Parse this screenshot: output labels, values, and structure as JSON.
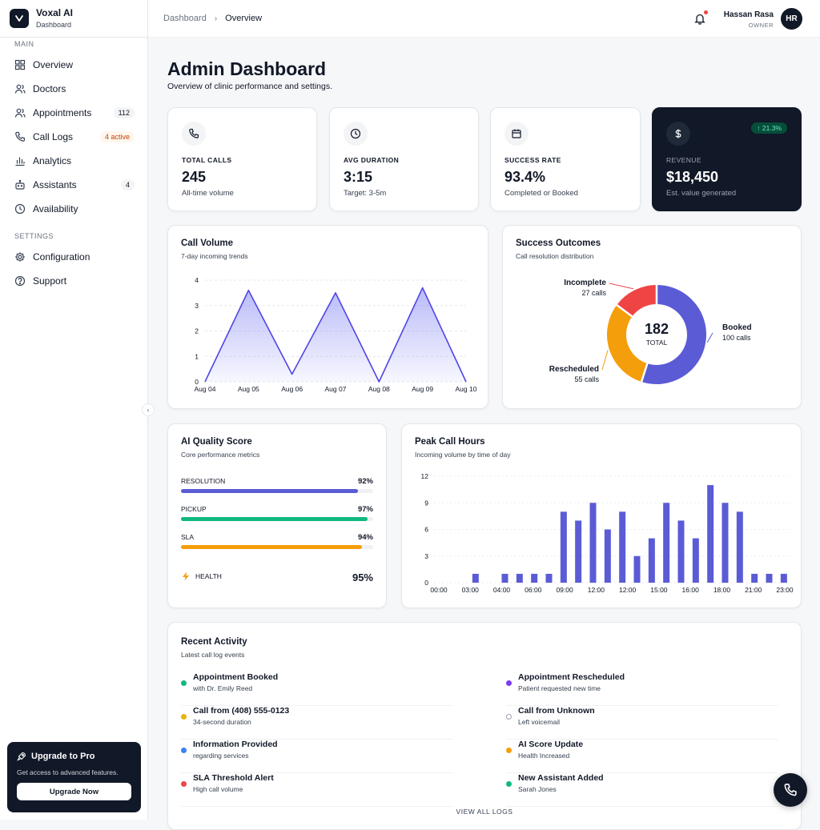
{
  "brand": {
    "name": "Voxal AI",
    "subtitle": "Dashboard"
  },
  "sidebar": {
    "main_label": "MAIN",
    "items": [
      {
        "label": "Overview",
        "icon": "grid-icon"
      },
      {
        "label": "Doctors",
        "icon": "users-icon"
      },
      {
        "label": "Appointments",
        "icon": "users-icon",
        "badge": "112"
      },
      {
        "label": "Call Logs",
        "icon": "phone-icon",
        "badge": "4 active"
      },
      {
        "label": "Analytics",
        "icon": "bar-chart-icon"
      },
      {
        "label": "Assistants",
        "icon": "robot-icon",
        "badge": "4"
      },
      {
        "label": "Availability",
        "icon": "clock-icon"
      }
    ],
    "settings_label": "SETTINGS",
    "settings_items": [
      {
        "label": "Configuration",
        "icon": "gear-icon"
      },
      {
        "label": "Support",
        "icon": "help-icon"
      }
    ],
    "upgrade": {
      "title": "Upgrade to Pro",
      "description": "Get access to advanced features.",
      "button": "Upgrade Now"
    }
  },
  "header": {
    "breadcrumb": [
      "Dashboard",
      "Overview"
    ],
    "user": {
      "name": "Hassan Rasa",
      "role": "OWNER",
      "initials": "HR"
    }
  },
  "page": {
    "title": "Admin Dashboard",
    "subtitle": "Overview of clinic performance and settings."
  },
  "stats": [
    {
      "label": "TOTAL CALLS",
      "value": "245",
      "sub": "All-time volume",
      "icon": "phone-icon"
    },
    {
      "label": "AVG DURATION",
      "value": "3:15",
      "sub": "Target: 3-5m",
      "icon": "clock-icon"
    },
    {
      "label": "SUCCESS RATE",
      "value": "93.4%",
      "sub": "Completed or Booked",
      "icon": "calendar-icon"
    },
    {
      "label": "REVENUE",
      "value": "$18,450",
      "sub": "Est. value generated",
      "icon": "dollar-icon",
      "trend": "↑ 21.3%"
    }
  ],
  "call_volume": {
    "title": "Call Volume",
    "subtitle": "7-day incoming trends"
  },
  "success_outcomes": {
    "title": "Success Outcomes",
    "subtitle": "Call resolution distribution",
    "center_value": "182",
    "center_label": "TOTAL",
    "labels": [
      {
        "name": "Booked",
        "sub": "100 calls"
      },
      {
        "name": "Rescheduled",
        "sub": "55 calls"
      },
      {
        "name": "Incomplete",
        "sub": "27 calls"
      }
    ]
  },
  "quality": {
    "title": "AI Quality Score",
    "subtitle": "Core performance metrics",
    "metrics": [
      {
        "label": "RESOLUTION",
        "value": "92%",
        "fraction": 0.92,
        "color": "#5b5bd6"
      },
      {
        "label": "PICKUP",
        "value": "97%",
        "fraction": 0.97,
        "color": "#10b981"
      },
      {
        "label": "SLA",
        "value": "94%",
        "fraction": 0.94,
        "color": "#f59e0b"
      }
    ],
    "health_label": "HEALTH",
    "health_value": "95%"
  },
  "peak_hours": {
    "title": "Peak Call Hours",
    "subtitle": "Incoming volume by time of day"
  },
  "activity": {
    "title": "Recent Activity",
    "subtitle": "Latest call log events",
    "items": [
      {
        "title": "Appointment Booked",
        "sub": "with Dr. Emily Reed",
        "color": "#10b981"
      },
      {
        "title": "Appointment Rescheduled",
        "sub": "Patient requested new time",
        "color": "#7c3aed"
      },
      {
        "title": "Call from (408) 555-0123",
        "sub": "34-second duration",
        "color": "#eab308"
      },
      {
        "title": "Call from Unknown",
        "sub": "Left voicemail",
        "color": "#ffffff"
      },
      {
        "title": "Information Provided",
        "sub": "regarding services",
        "color": "#3b82f6"
      },
      {
        "title": "AI Score Update",
        "sub": "Health Increased",
        "color": "#f59e0b"
      },
      {
        "title": "SLA Threshold Alert",
        "sub": "High call volume",
        "color": "#ef4444"
      },
      {
        "title": "New Assistant Added",
        "sub": "Sarah Jones",
        "color": "#10b981"
      }
    ],
    "view_all": "VIEW ALL LOGS"
  },
  "colors": {
    "accent": "#5b5bd6",
    "dark": "#111827",
    "rescheduled": "#f59e0b",
    "incomplete": "#ef4444"
  },
  "chart_data": [
    {
      "type": "area",
      "title": "Call Volume",
      "subtitle": "7-day incoming trends",
      "x": [
        "Aug 04",
        "Aug 05",
        "Aug 06",
        "Aug 07",
        "Aug 08",
        "Aug 09",
        "Aug 10"
      ],
      "y": [
        0,
        3.6,
        0.3,
        3.5,
        0,
        3.7,
        0
      ],
      "ylim": [
        0,
        4
      ],
      "yticks": [
        0,
        1,
        2,
        3,
        4
      ],
      "grid": true
    },
    {
      "type": "pie",
      "title": "Success Outcomes",
      "subtitle": "Call resolution distribution",
      "slices": [
        {
          "label": "Booked",
          "value": 100,
          "color": "#5b5bd6"
        },
        {
          "label": "Rescheduled",
          "value": 55,
          "color": "#f59e0b"
        },
        {
          "label": "Incomplete",
          "value": 27,
          "color": "#ef4444"
        }
      ],
      "total": 182
    },
    {
      "type": "bar",
      "title": "Peak Call Hours",
      "subtitle": "Incoming volume by time of day",
      "categories": [
        "00:00",
        "01:00",
        "02:00",
        "03:00",
        "04:00",
        "05:00",
        "06:00",
        "07:00",
        "08:00",
        "09:00",
        "10:00",
        "11:00",
        "12:00",
        "13:00",
        "14:00",
        "15:00",
        "16:00",
        "17:00",
        "18:00",
        "19:00",
        "20:00",
        "21:00",
        "22:00",
        "23:00"
      ],
      "values": [
        0,
        0,
        1,
        0,
        1,
        1,
        1,
        1,
        8,
        7,
        9,
        6,
        8,
        3,
        5,
        9,
        7,
        5,
        11,
        9,
        8,
        1,
        1,
        1
      ],
      "xticks": [
        "00:00",
        "03:00",
        "04:00",
        "06:00",
        "09:00",
        "12:00",
        "12:00",
        "15:00",
        "16:00",
        "18:00",
        "21:00",
        "23:00"
      ],
      "ylim": [
        0,
        12
      ],
      "yticks": [
        0,
        3,
        6,
        9,
        12
      ],
      "grid": true
    }
  ]
}
